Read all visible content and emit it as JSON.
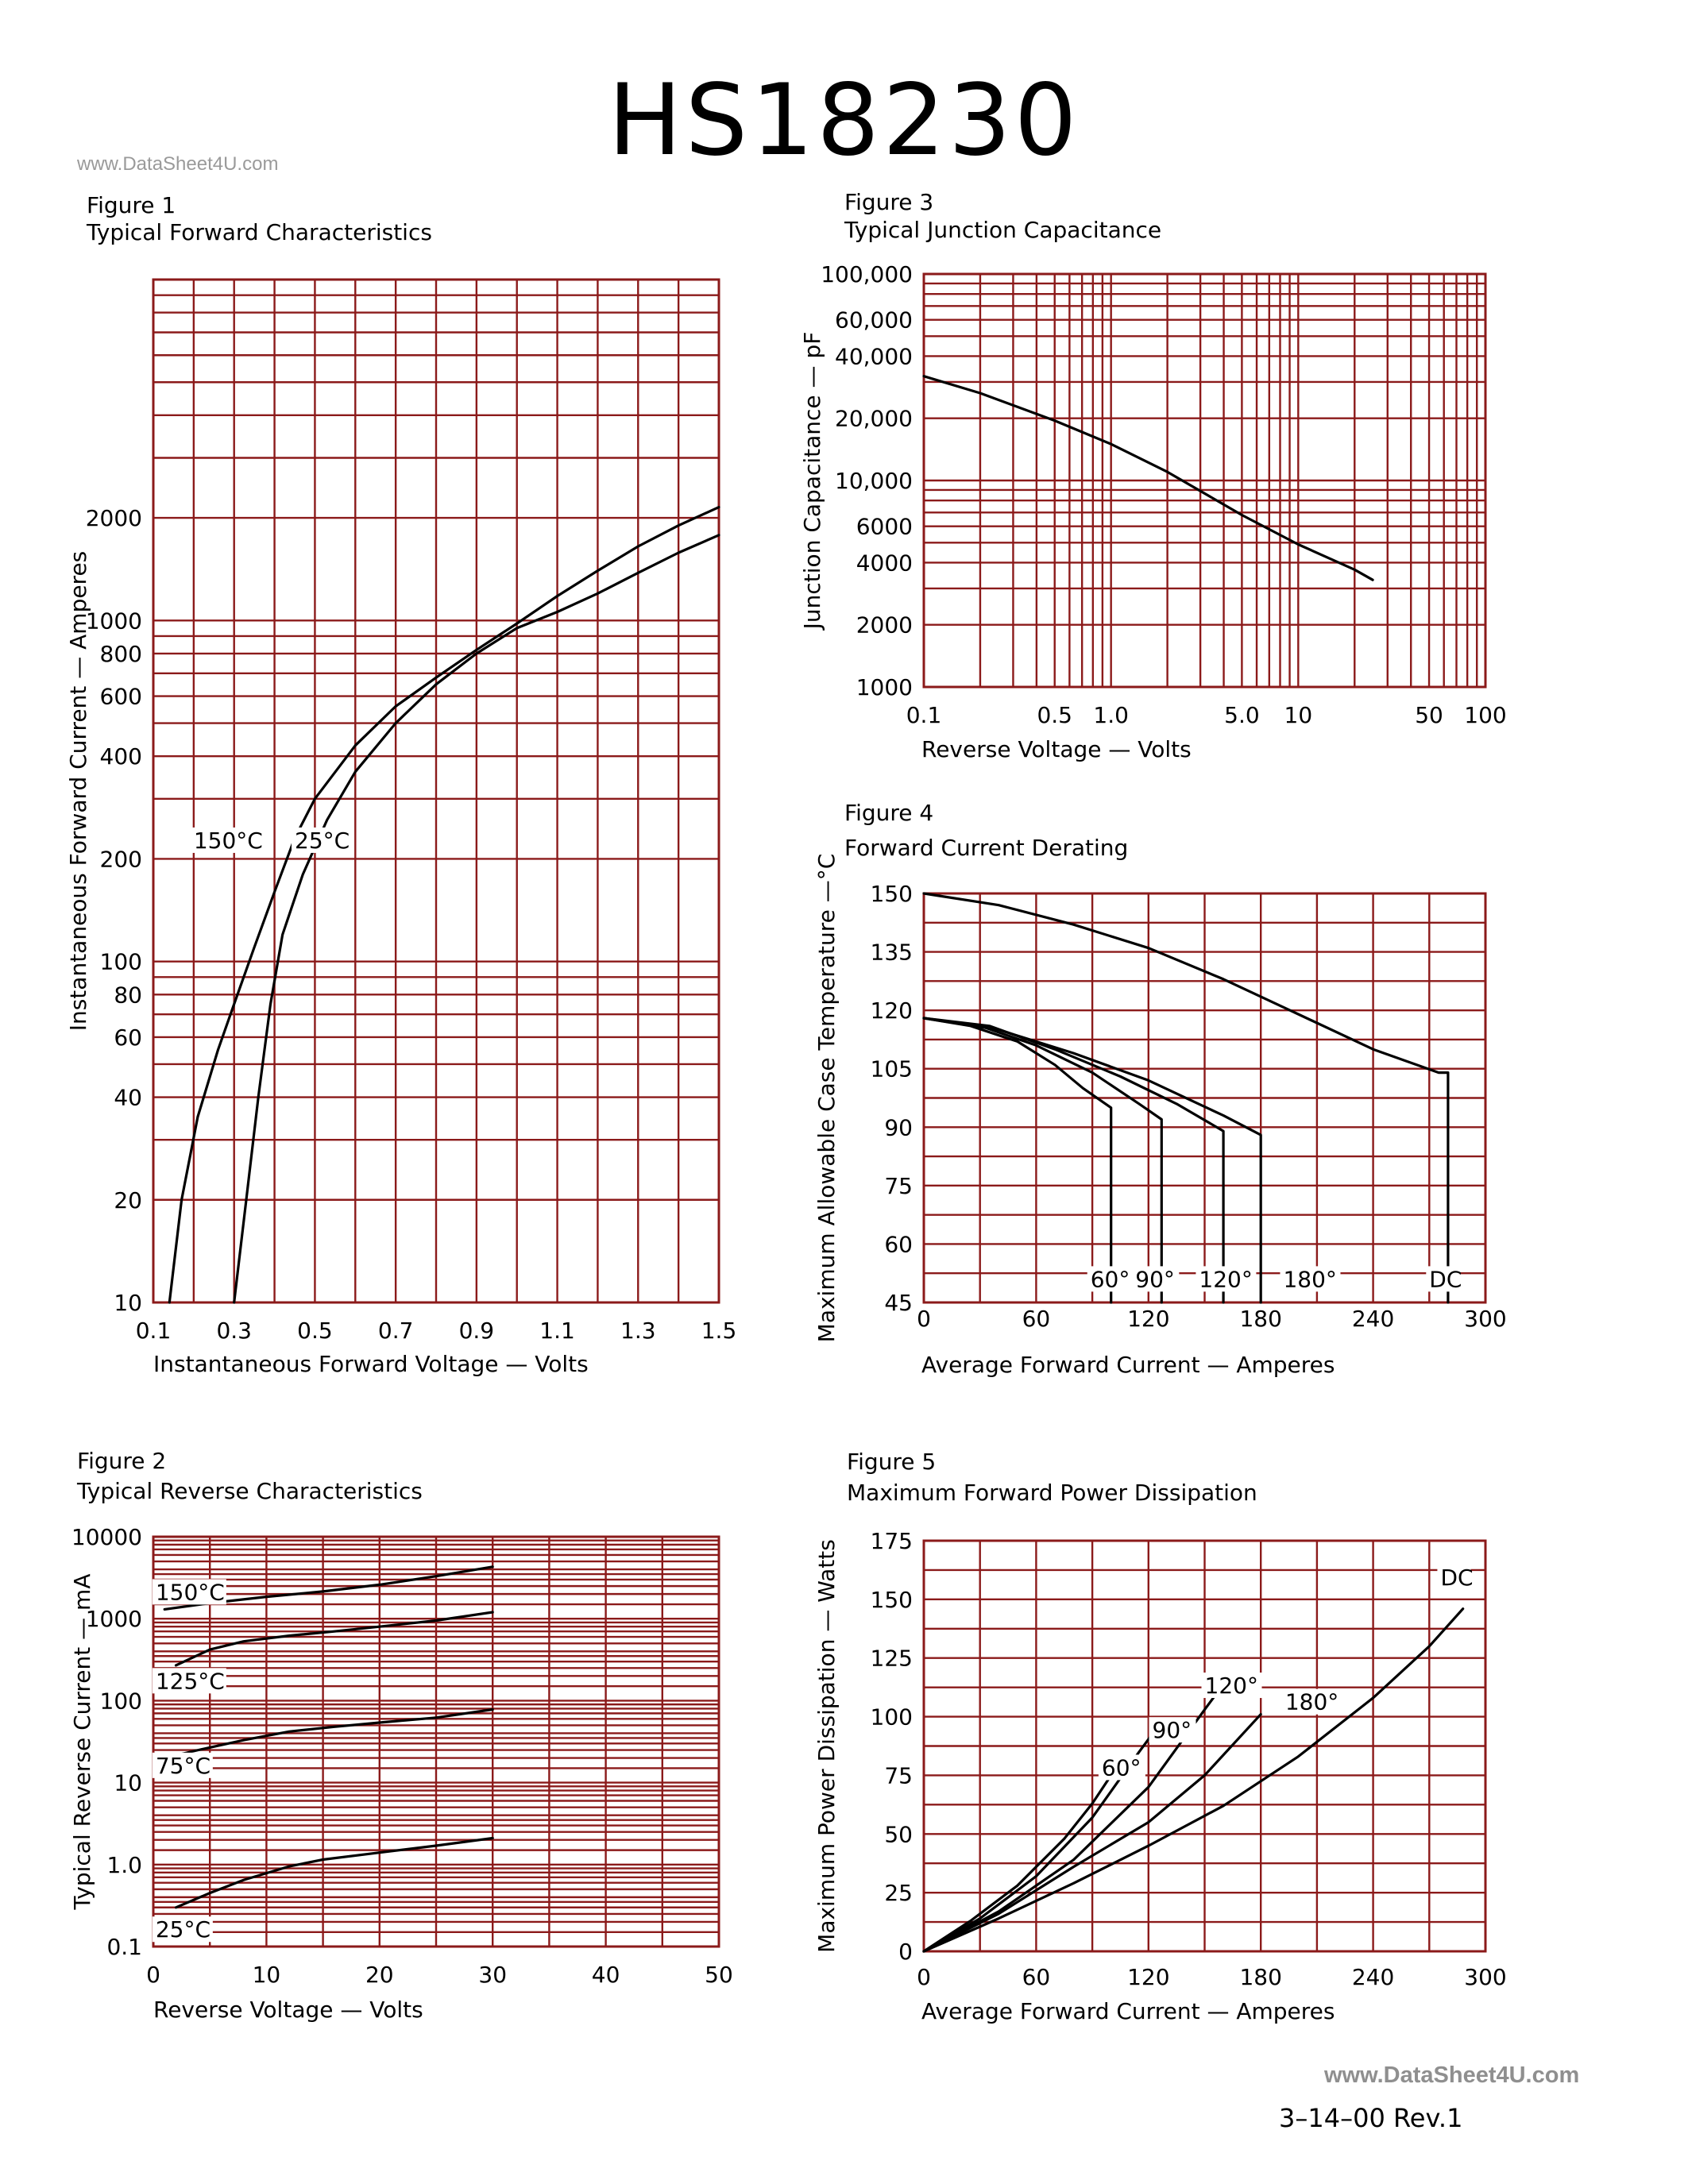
{
  "header": {
    "title": "HS18230",
    "watermark_top": "www.DataSheet4U.com",
    "watermark_bottom": "www.DataSheet4U.com",
    "revision": "3–14–00   Rev.1"
  },
  "colors": {
    "grid": "#8b1a1a",
    "curve": "#000000"
  },
  "chart_data": [
    {
      "id": "fig1",
      "type": "line",
      "figure_label": "Figure 1",
      "title": "Typical Forward Characteristics",
      "xlabel": "Instantaneous Forward Voltage — Volts",
      "ylabel": "Instantaneous Forward Current — Amperes",
      "xscale": "linear",
      "yscale": "log",
      "xlim": [
        0.1,
        1.5
      ],
      "ylim": [
        10,
        10000
      ],
      "grid": true,
      "x_ticks": [
        {
          "v": 0.1,
          "label": "0.1"
        },
        {
          "v": 0.3,
          "label": "0.3"
        },
        {
          "v": 0.5,
          "label": "0.5"
        },
        {
          "v": 0.7,
          "label": "0.7"
        },
        {
          "v": 0.9,
          "label": "0.9"
        },
        {
          "v": 1.1,
          "label": "1.1"
        },
        {
          "v": 1.3,
          "label": "1.3"
        },
        {
          "v": 1.5,
          "label": "1.5"
        }
      ],
      "y_ticks": [
        {
          "v": 10,
          "label": "10"
        },
        {
          "v": 20,
          "label": "20"
        },
        {
          "v": 40,
          "label": "40"
        },
        {
          "v": 60,
          "label": "60"
        },
        {
          "v": 80,
          "label": "80"
        },
        {
          "v": 100,
          "label": "100"
        },
        {
          "v": 200,
          "label": "200"
        },
        {
          "v": 400,
          "label": "400"
        },
        {
          "v": 600,
          "label": "600"
        },
        {
          "v": 800,
          "label": "800"
        },
        {
          "v": 1000,
          "label": "1000"
        },
        {
          "v": 2000,
          "label": "2000"
        }
      ],
      "series": [
        {
          "name": "150°C",
          "label_at": [
            0.2,
            215
          ],
          "points": [
            [
              0.14,
              10
            ],
            [
              0.17,
              20
            ],
            [
              0.21,
              35
            ],
            [
              0.26,
              55
            ],
            [
              0.3,
              75
            ],
            [
              0.35,
              110
            ],
            [
              0.4,
              160
            ],
            [
              0.45,
              230
            ],
            [
              0.5,
              300
            ],
            [
              0.6,
              430
            ],
            [
              0.7,
              560
            ],
            [
              0.8,
              680
            ],
            [
              0.9,
              820
            ],
            [
              1.0,
              980
            ],
            [
              1.1,
              1180
            ],
            [
              1.2,
              1400
            ],
            [
              1.3,
              1650
            ],
            [
              1.4,
              1900
            ],
            [
              1.5,
              2150
            ]
          ]
        },
        {
          "name": "25°C",
          "label_at": [
            0.45,
            215
          ],
          "points": [
            [
              0.3,
              10
            ],
            [
              0.33,
              20
            ],
            [
              0.36,
              40
            ],
            [
              0.39,
              75
            ],
            [
              0.42,
              120
            ],
            [
              0.47,
              180
            ],
            [
              0.53,
              260
            ],
            [
              0.6,
              360
            ],
            [
              0.7,
              500
            ],
            [
              0.8,
              650
            ],
            [
              0.9,
              800
            ],
            [
              1.0,
              950
            ],
            [
              1.1,
              1060
            ],
            [
              1.2,
              1200
            ],
            [
              1.3,
              1380
            ],
            [
              1.4,
              1580
            ],
            [
              1.5,
              1780
            ]
          ]
        }
      ]
    },
    {
      "id": "fig2",
      "type": "line",
      "figure_label": "Figure 2",
      "title": "Typical Reverse Characteristics",
      "xlabel": "Reverse Voltage — Volts",
      "ylabel": "Typical Reverse Current — mA",
      "xscale": "linear",
      "yscale": "log",
      "xlim": [
        0,
        50
      ],
      "ylim": [
        0.1,
        10000
      ],
      "grid": true,
      "x_ticks": [
        {
          "v": 0,
          "label": "0"
        },
        {
          "v": 10,
          "label": "10"
        },
        {
          "v": 20,
          "label": "20"
        },
        {
          "v": 30,
          "label": "30"
        },
        {
          "v": 40,
          "label": "40"
        },
        {
          "v": 50,
          "label": "50"
        }
      ],
      "y_ticks": [
        {
          "v": 0.1,
          "label": "0.1"
        },
        {
          "v": 1,
          "label": "1.0"
        },
        {
          "v": 10,
          "label": "10"
        },
        {
          "v": 100,
          "label": "100"
        },
        {
          "v": 1000,
          "label": "1000"
        },
        {
          "v": 10000,
          "label": "10000"
        }
      ],
      "series": [
        {
          "name": "150°C",
          "label_at": [
            0.2,
            1700
          ],
          "points": [
            [
              1,
              1300
            ],
            [
              5,
              1550
            ],
            [
              10,
              1850
            ],
            [
              15,
              2150
            ],
            [
              20,
              2600
            ],
            [
              25,
              3300
            ],
            [
              30,
              4300
            ]
          ]
        },
        {
          "name": "125°C",
          "label_at": [
            0.2,
            140
          ],
          "points": [
            [
              2,
              270
            ],
            [
              5,
              420
            ],
            [
              8,
              530
            ],
            [
              12,
              620
            ],
            [
              16,
              700
            ],
            [
              20,
              800
            ],
            [
              25,
              950
            ],
            [
              30,
              1200
            ]
          ]
        },
        {
          "name": "75°C",
          "label_at": [
            0.2,
            13
          ],
          "points": [
            [
              1,
              20
            ],
            [
              4,
              25
            ],
            [
              8,
              33
            ],
            [
              12,
              42
            ],
            [
              16,
              48
            ],
            [
              20,
              54
            ],
            [
              25,
              62
            ],
            [
              30,
              78
            ]
          ]
        },
        {
          "name": "25°C",
          "label_at": [
            0.2,
            0.13
          ],
          "points": [
            [
              2,
              0.3
            ],
            [
              5,
              0.45
            ],
            [
              8,
              0.65
            ],
            [
              12,
              0.95
            ],
            [
              15,
              1.15
            ],
            [
              20,
              1.4
            ],
            [
              25,
              1.7
            ],
            [
              30,
              2.1
            ]
          ]
        }
      ]
    },
    {
      "id": "fig3",
      "type": "line",
      "figure_label": "Figure 3",
      "title": "Typical Junction Capacitance",
      "xlabel": "Reverse Voltage — Volts",
      "ylabel": "Junction Capacitance — pF",
      "xscale": "log",
      "yscale": "log",
      "xlim": [
        0.1,
        100
      ],
      "ylim": [
        1000,
        100000
      ],
      "grid": true,
      "x_ticks": [
        {
          "v": 0.1,
          "label": "0.1"
        },
        {
          "v": 0.5,
          "label": "0.5"
        },
        {
          "v": 1,
          "label": "1.0"
        },
        {
          "v": 5,
          "label": "5.0"
        },
        {
          "v": 10,
          "label": "10"
        },
        {
          "v": 50,
          "label": "50"
        },
        {
          "v": 100,
          "label": "100"
        }
      ],
      "y_ticks": [
        {
          "v": 1000,
          "label": "1000"
        },
        {
          "v": 2000,
          "label": "2000"
        },
        {
          "v": 4000,
          "label": "4000"
        },
        {
          "v": 6000,
          "label": "6000"
        },
        {
          "v": 10000,
          "label": "10,000"
        },
        {
          "v": 20000,
          "label": "20,000"
        },
        {
          "v": 40000,
          "label": "40,000"
        },
        {
          "v": 60000,
          "label": "60,000"
        },
        {
          "v": 100000,
          "label": "100,000"
        }
      ],
      "series": [
        {
          "name": "",
          "points": [
            [
              0.1,
              32000
            ],
            [
              0.2,
              26500
            ],
            [
              0.5,
              19500
            ],
            [
              1,
              15000
            ],
            [
              2,
              11000
            ],
            [
              5,
              6800
            ],
            [
              10,
              4900
            ],
            [
              20,
              3700
            ],
            [
              25,
              3300
            ]
          ]
        }
      ]
    },
    {
      "id": "fig4",
      "type": "line",
      "figure_label": "Figure 4",
      "title": "Forward Current Derating",
      "xlabel": "Average Forward Current — Amperes",
      "ylabel": "Maximum Allowable Case Temperature —°C",
      "xscale": "linear",
      "yscale": "linear",
      "xlim": [
        0,
        300
      ],
      "ylim": [
        45,
        150
      ],
      "grid": true,
      "x_ticks": [
        {
          "v": 0,
          "label": "0"
        },
        {
          "v": 60,
          "label": "60"
        },
        {
          "v": 120,
          "label": "120"
        },
        {
          "v": 180,
          "label": "180"
        },
        {
          "v": 240,
          "label": "240"
        },
        {
          "v": 300,
          "label": "300"
        }
      ],
      "y_ticks": [
        {
          "v": 45,
          "label": "45"
        },
        {
          "v": 60,
          "label": "60"
        },
        {
          "v": 75,
          "label": "75"
        },
        {
          "v": 90,
          "label": "90"
        },
        {
          "v": 105,
          "label": "105"
        },
        {
          "v": 120,
          "label": "120"
        },
        {
          "v": 135,
          "label": "135"
        },
        {
          "v": 150,
          "label": "150"
        }
      ],
      "series": [
        {
          "name": "DC",
          "label_at": [
            270,
            49
          ],
          "points": [
            [
              0,
              150
            ],
            [
              40,
              147
            ],
            [
              80,
              142
            ],
            [
              120,
              136
            ],
            [
              160,
              128
            ],
            [
              200,
              119
            ],
            [
              240,
              110
            ],
            [
              275,
              104
            ],
            [
              280,
              104
            ],
            [
              280,
              45
            ]
          ]
        },
        {
          "name": "60°",
          "label_at": [
            89,
            49
          ],
          "points": [
            [
              0,
              118
            ],
            [
              25,
              116
            ],
            [
              50,
              112
            ],
            [
              70,
              106
            ],
            [
              85,
              100
            ],
            [
              100,
              95
            ],
            [
              100,
              45
            ]
          ]
        },
        {
          "name": "90°",
          "label_at": [
            113,
            49
          ],
          "points": [
            [
              0,
              118
            ],
            [
              30,
              116
            ],
            [
              60,
              111
            ],
            [
              90,
              104
            ],
            [
              115,
              96
            ],
            [
              127,
              92
            ],
            [
              127,
              45
            ]
          ]
        },
        {
          "name": "120°",
          "label_at": [
            147,
            49
          ],
          "points": [
            [
              0,
              118
            ],
            [
              35,
              116
            ],
            [
              70,
              110
            ],
            [
              105,
              103
            ],
            [
              135,
              96
            ],
            [
              160,
              89
            ],
            [
              160,
              45
            ]
          ]
        },
        {
          "name": "180°",
          "label_at": [
            192,
            49
          ],
          "points": [
            [
              0,
              118
            ],
            [
              40,
              115
            ],
            [
              80,
              109
            ],
            [
              120,
              102
            ],
            [
              160,
              93
            ],
            [
              180,
              88
            ],
            [
              180,
              45
            ]
          ]
        }
      ]
    },
    {
      "id": "fig5",
      "type": "line",
      "figure_label": "Figure 5",
      "title": "Maximum Forward Power Dissipation",
      "xlabel": "Average Forward Current — Amperes",
      "ylabel": "Maximum Power Dissipation — Watts",
      "xscale": "linear",
      "yscale": "linear",
      "xlim": [
        0,
        300
      ],
      "ylim": [
        0,
        175
      ],
      "grid": true,
      "x_ticks": [
        {
          "v": 0,
          "label": "0"
        },
        {
          "v": 60,
          "label": "60"
        },
        {
          "v": 120,
          "label": "120"
        },
        {
          "v": 180,
          "label": "180"
        },
        {
          "v": 240,
          "label": "240"
        },
        {
          "v": 300,
          "label": "300"
        }
      ],
      "y_ticks": [
        {
          "v": 0,
          "label": "0"
        },
        {
          "v": 25,
          "label": "25"
        },
        {
          "v": 50,
          "label": "50"
        },
        {
          "v": 75,
          "label": "75"
        },
        {
          "v": 100,
          "label": "100"
        },
        {
          "v": 125,
          "label": "125"
        },
        {
          "v": 150,
          "label": "150"
        },
        {
          "v": 175,
          "label": "175"
        }
      ],
      "series": [
        {
          "name": "DC",
          "label_at": [
            276,
            156
          ],
          "points": [
            [
              0,
              0
            ],
            [
              40,
              14
            ],
            [
              80,
              29
            ],
            [
              120,
              45
            ],
            [
              160,
              62
            ],
            [
              200,
              83
            ],
            [
              240,
              108
            ],
            [
              270,
              130
            ],
            [
              288,
              146
            ]
          ]
        },
        {
          "name": "180°",
          "label_at": [
            193,
            103
          ],
          "points": [
            [
              0,
              0
            ],
            [
              40,
              16
            ],
            [
              80,
              36
            ],
            [
              120,
              55
            ],
            [
              150,
              75
            ],
            [
              180,
              101
            ]
          ]
        },
        {
          "name": "120°",
          "label_at": [
            150,
            110
          ],
          "points": [
            [
              0,
              0
            ],
            [
              40,
              17
            ],
            [
              80,
              39
            ],
            [
              120,
              70
            ],
            [
              150,
              103
            ],
            [
              163,
              117
            ]
          ]
        },
        {
          "name": "90°",
          "label_at": [
            122,
            91
          ],
          "points": [
            [
              0,
              0
            ],
            [
              30,
              14
            ],
            [
              60,
              32
            ],
            [
              90,
              57
            ],
            [
              115,
              85
            ],
            [
              128,
              99
            ]
          ]
        },
        {
          "name": "60°",
          "label_at": [
            95,
            75
          ],
          "points": [
            [
              0,
              0
            ],
            [
              25,
              13
            ],
            [
              50,
              28
            ],
            [
              75,
              48
            ],
            [
              90,
              63
            ],
            [
              100,
              75
            ]
          ]
        }
      ]
    }
  ]
}
